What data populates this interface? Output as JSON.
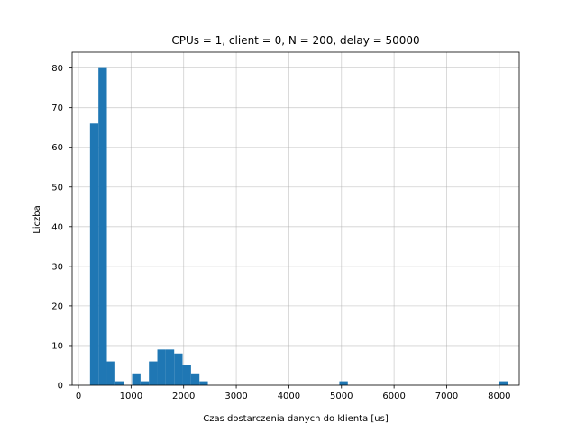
{
  "chart_data": {
    "type": "bar",
    "title": "CPUs = 1, client = 0, N = 200, delay = 50000",
    "xlabel": "Czas dostarczenia danych do klienta [us]",
    "ylabel": "Liczba",
    "xlim": [
      -120,
      8380
    ],
    "ylim": [
      0,
      84
    ],
    "xticks": [
      0,
      1000,
      2000,
      3000,
      4000,
      5000,
      6000,
      7000,
      8000
    ],
    "yticks": [
      0,
      10,
      20,
      30,
      40,
      50,
      60,
      70,
      80
    ],
    "grid": true,
    "bar_color": "#1f77b4",
    "bin_width": 160,
    "bins": [
      {
        "x0": 220,
        "count": 66
      },
      {
        "x0": 380,
        "count": 80
      },
      {
        "x0": 540,
        "count": 6
      },
      {
        "x0": 700,
        "count": 1
      },
      {
        "x0": 1020,
        "count": 3
      },
      {
        "x0": 1180,
        "count": 1
      },
      {
        "x0": 1340,
        "count": 6
      },
      {
        "x0": 1500,
        "count": 9
      },
      {
        "x0": 1660,
        "count": 9
      },
      {
        "x0": 1820,
        "count": 8
      },
      {
        "x0": 1980,
        "count": 5
      },
      {
        "x0": 2140,
        "count": 3
      },
      {
        "x0": 2300,
        "count": 1
      },
      {
        "x0": 4960,
        "count": 1
      },
      {
        "x0": 8000,
        "count": 1
      }
    ]
  }
}
